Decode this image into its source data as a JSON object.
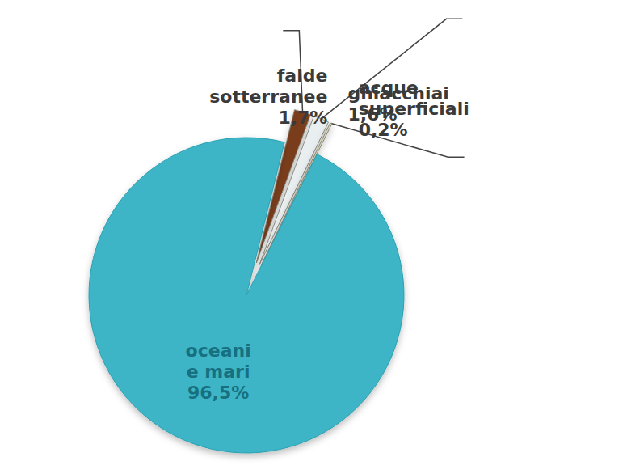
{
  "chart_data": {
    "type": "pie",
    "categories": [
      "falde sotterranee",
      "ghiacchiai",
      "acque superficiali",
      "oceani e mari"
    ],
    "values": [
      1.7,
      1.6,
      0.2,
      96.5
    ],
    "value_labels": [
      "1,7%",
      "1,6%",
      "0,2%",
      "96,5%"
    ],
    "colors": [
      "#7a3e1e",
      "#e9eef0",
      "#d6d1b4",
      "#3db5c6"
    ],
    "data_labels": true
  }
}
